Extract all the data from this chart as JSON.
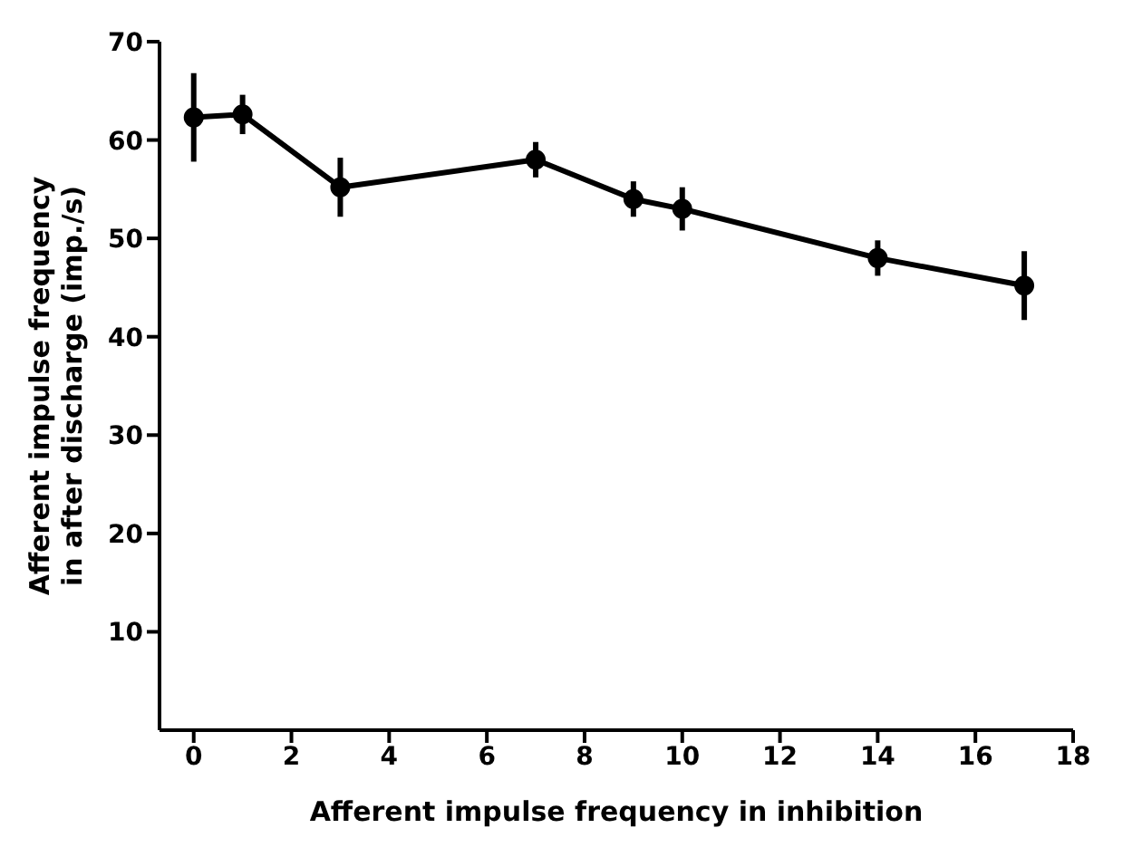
{
  "chart_data": {
    "type": "line",
    "xlabel": "Afferent impulse frequency in inhibition",
    "ylabel": "Afferent impulse frequency\nin after discharge (imp./s)",
    "x": [
      0,
      1,
      3,
      7,
      9,
      10,
      14,
      17
    ],
    "series": [
      {
        "color": "#000000",
        "values": [
          62.3,
          62.6,
          55.2,
          58,
          54,
          53,
          48,
          45.2
        ],
        "errors": [
          4.5,
          2,
          3,
          1.8,
          1.8,
          2.2,
          1.8,
          3.5
        ]
      }
    ],
    "xlim": [
      -0.7,
      18
    ],
    "xticks": [
      0,
      2,
      4,
      6,
      8,
      10,
      12,
      14,
      16,
      18
    ],
    "ylim": [
      0,
      70
    ],
    "yticks": [
      10,
      20,
      30,
      40,
      50,
      60,
      70
    ],
    "grid": false,
    "legend": false,
    "marker": "circle",
    "line_style": "solid"
  }
}
